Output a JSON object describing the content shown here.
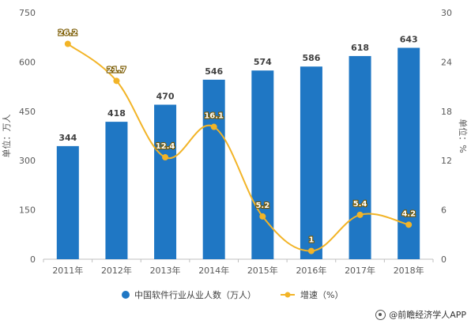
{
  "chart_data": {
    "type": "bar",
    "categories": [
      "2011年",
      "2012年",
      "2013年",
      "2014年",
      "2015年",
      "2016年",
      "2017年",
      "2018年"
    ],
    "series": [
      {
        "name": "中国软件行业从业人数（万人）",
        "type": "bar",
        "axis": "left",
        "values": [
          344,
          418,
          470,
          546,
          574,
          586,
          618,
          643
        ],
        "color": "#1f77c4"
      },
      {
        "name": "增速（%）",
        "type": "line",
        "axis": "right",
        "values": [
          26.2,
          21.7,
          12.4,
          16.1,
          5.2,
          1,
          5.4,
          4.2
        ],
        "color": "#f2b427"
      }
    ],
    "ylabel": "单位：万人",
    "y2label": "单位：%",
    "ylim": [
      0,
      750
    ],
    "yticks": [
      0,
      150,
      300,
      450,
      600,
      750
    ],
    "y2lim": [
      0,
      30
    ],
    "y2ticks": [
      0,
      6,
      12,
      18,
      24,
      30
    ],
    "grid": false,
    "legend": "bottom-center"
  },
  "credit": {
    "text": "@前瞻经济学人APP",
    "icon": "qianzhan-logo-icon"
  }
}
